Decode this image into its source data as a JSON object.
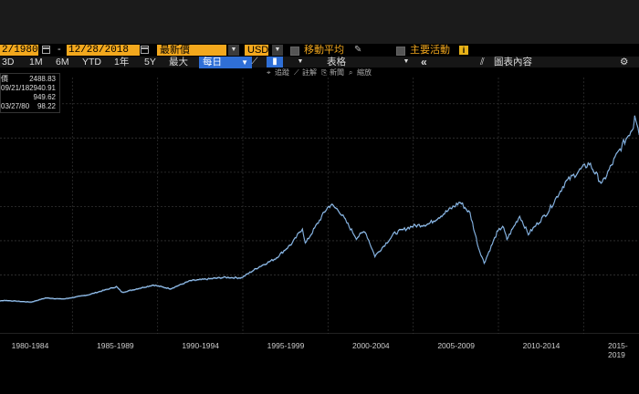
{
  "toolbar": {
    "start_date": "2/1980",
    "separator": "-",
    "end_date": "12/28/2018",
    "price_field": "最新價",
    "currency": "USD",
    "moving_avg": "移動平均",
    "key_events": "主要活動",
    "info_symbol": "i"
  },
  "periods": {
    "p3d": "3D",
    "p1m": "1M",
    "p6m": "6M",
    "ytd": "YTD",
    "p1y": "1年",
    "p5y": "5Y",
    "max": "最大",
    "frequency": "每日",
    "table": "表格",
    "collapse": "«",
    "chart_contents": "圖表內容",
    "settings": "⚙"
  },
  "tools": {
    "track": "追蹤",
    "annotate": "註解",
    "news": "新聞",
    "zoom": "縮放"
  },
  "legend": {
    "last_label": "價",
    "last_value": "2488.83",
    "high_date": "09/21/18",
    "high_value": "2940.91",
    "avg_value": "949.62",
    "low_date": "03/27/80",
    "low_value": "98.22"
  },
  "colors": {
    "accent": "#f3a81d",
    "active": "#2f6fd6",
    "line": "#9fc8f0",
    "background": "#000000"
  },
  "chart_data": {
    "type": "line",
    "series": [
      {
        "values": [
          [
            "1980-01",
            107
          ],
          [
            "1980-03",
            98
          ],
          [
            "1981-01",
            130
          ],
          [
            "1982-08",
            105
          ],
          [
            "1983-06",
            165
          ],
          [
            "1984-07",
            150
          ],
          [
            "1985-12",
            211
          ],
          [
            "1987-08",
            330
          ],
          [
            "1987-12",
            247
          ],
          [
            "1989-10",
            355
          ],
          [
            "1990-10",
            300
          ],
          [
            "1991-12",
            417
          ],
          [
            "1993-12",
            466
          ],
          [
            "1994-12",
            459
          ],
          [
            "1995-12",
            615
          ],
          [
            "1996-12",
            740
          ],
          [
            "1997-12",
            970
          ],
          [
            "1998-07",
            1186
          ],
          [
            "1998-09",
            957
          ],
          [
            "1999-12",
            1469
          ],
          [
            "2000-03",
            1527
          ],
          [
            "2000-09",
            1436
          ],
          [
            "2001-09",
            1040
          ],
          [
            "2002-03",
            1147
          ],
          [
            "2002-10",
            776
          ],
          [
            "2003-12",
            1111
          ],
          [
            "2004-12",
            1211
          ],
          [
            "2005-12",
            1248
          ],
          [
            "2006-12",
            1418
          ],
          [
            "2007-10",
            1565
          ],
          [
            "2008-05",
            1400
          ],
          [
            "2008-11",
            896
          ],
          [
            "2009-03",
            676
          ],
          [
            "2009-12",
            1115
          ],
          [
            "2010-04",
            1217
          ],
          [
            "2010-07",
            1022
          ],
          [
            "2011-04",
            1363
          ],
          [
            "2011-10",
            1099
          ],
          [
            "2012-12",
            1426
          ],
          [
            "2013-12",
            1848
          ],
          [
            "2014-12",
            2058
          ],
          [
            "2015-05",
            2130
          ],
          [
            "2016-02",
            1829
          ],
          [
            "2016-12",
            2238
          ],
          [
            "2017-12",
            2673
          ],
          [
            "2018-01",
            2872
          ],
          [
            "2018-04",
            2581
          ],
          [
            "2018-09",
            2940
          ],
          [
            "2018-12",
            2488
          ]
        ]
      }
    ],
    "x_tick_labels": [
      "1980-1984",
      "1985-1989",
      "1990-1994",
      "1995-1999",
      "2000-2004",
      "2005-2009",
      "2010-2014",
      "2015-2019"
    ],
    "xlim": [
      "1980-01",
      "2019-01"
    ],
    "ylim": [
      0,
      3250
    ],
    "grid": true
  }
}
